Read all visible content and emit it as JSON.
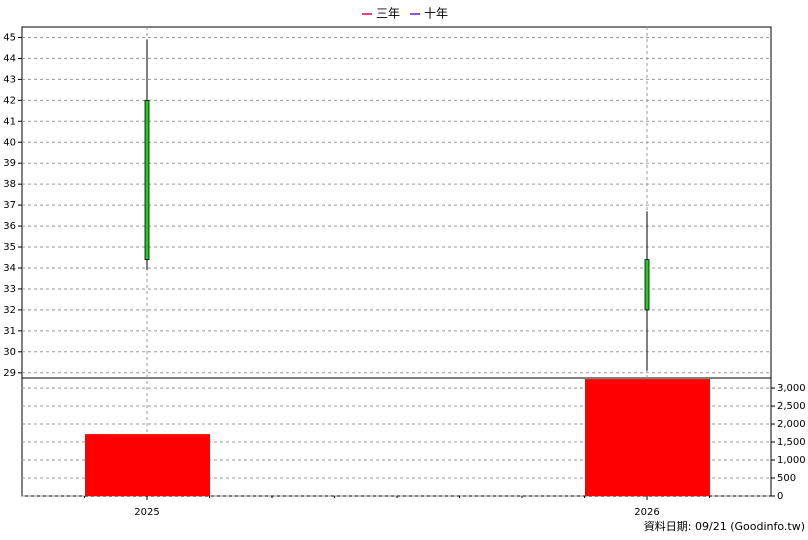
{
  "chart_data": {
    "type": "candlestick",
    "series": [
      {
        "name": "三年",
        "color": "#e8004c"
      },
      {
        "name": "十年",
        "color": "#6a1fd0"
      }
    ],
    "categories": [
      "2025",
      "2026"
    ],
    "open": [
      42.0,
      34.4
    ],
    "high": [
      44.9,
      36.7
    ],
    "low": [
      33.9,
      29.1
    ],
    "close": [
      34.4,
      32.0
    ],
    "candle_color": "#22cc22",
    "volume": [
      1720,
      3250
    ],
    "volume_color": "#ff0000",
    "ylim": [
      28.75,
      45.5
    ],
    "yticks": [
      29,
      30,
      31,
      32,
      33,
      34,
      35,
      36,
      37,
      38,
      39,
      40,
      41,
      42,
      43,
      44,
      45
    ],
    "y2lim": [
      0,
      3280
    ],
    "y2ticks": [
      0,
      500,
      {
        "value": 1000,
        "label": "1,000"
      },
      {
        "value": 1500,
        "label": "1,500"
      },
      {
        "value": 2000,
        "label": "2,000"
      },
      {
        "value": 2500,
        "label": "2,500"
      },
      {
        "value": 3000,
        "label": "3,000"
      }
    ],
    "grid": true,
    "source_note": "資料日期: 09/21  (Goodinfo.tw)"
  }
}
